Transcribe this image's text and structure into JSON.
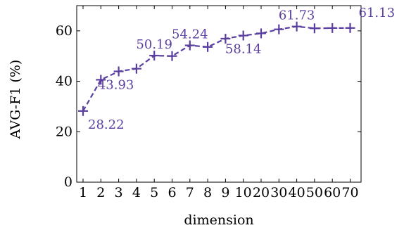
{
  "colors": {
    "series": "#5b3fa0",
    "axis": "#000000"
  },
  "chart_data": {
    "type": "line",
    "categories": [
      "1",
      "2",
      "3",
      "4",
      "5",
      "6",
      "7",
      "8",
      "9",
      "10",
      "20",
      "30",
      "40",
      "50",
      "60",
      "70"
    ],
    "series": [
      {
        "values": [
          28.22,
          40.6,
          43.93,
          45.0,
          50.19,
          50.0,
          54.24,
          53.6,
          56.9,
          58.14,
          59.0,
          60.6,
          61.73,
          61.0,
          61.1,
          61.13
        ]
      }
    ],
    "data_labels": [
      {
        "index": 0,
        "text": "28.22",
        "pos": "below-right"
      },
      {
        "index": 2,
        "text": "43.93",
        "pos": "below-left"
      },
      {
        "index": 4,
        "text": "50.19",
        "pos": "above"
      },
      {
        "index": 6,
        "text": "54.24",
        "pos": "above"
      },
      {
        "index": 9,
        "text": "58.14",
        "pos": "below"
      },
      {
        "index": 12,
        "text": "61.73",
        "pos": "above"
      },
      {
        "index": 15,
        "text": "61.13",
        "pos": "right"
      }
    ],
    "xlabel": "dimension",
    "ylabel": "AVG-F1 (%)",
    "ylim": [
      0,
      70
    ],
    "yticks": [
      0,
      20,
      40,
      60
    ],
    "grid": false,
    "marker": "plus",
    "line_style": "dashed"
  }
}
